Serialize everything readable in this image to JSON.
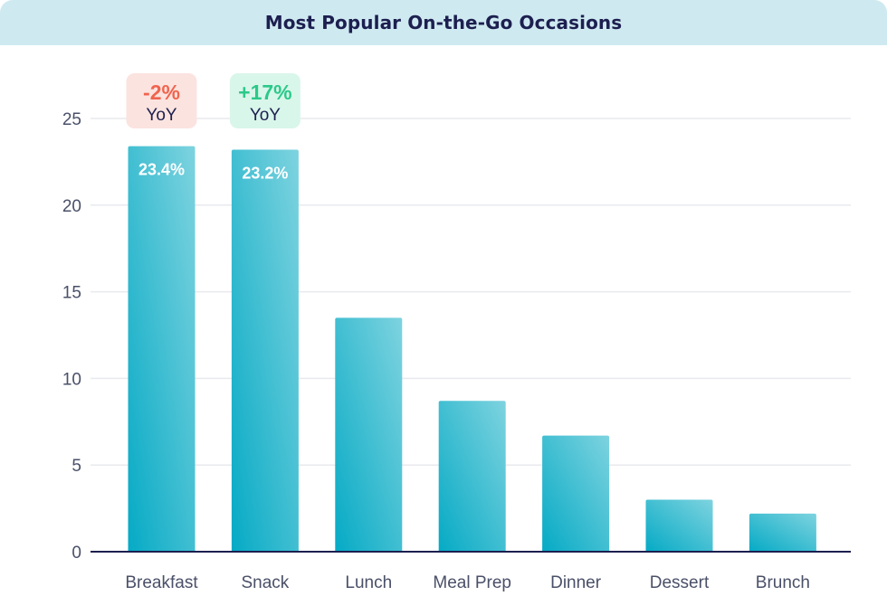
{
  "title": "Most Popular On-the-Go Occasions",
  "colors": {
    "title_bg": "#cfe9f1",
    "title_text": "#1c1f4f",
    "bar_top": "#7ed3df",
    "bar_bottom": "#05aac5",
    "bar_label": "#ffffff",
    "axis": "#1c1f4f",
    "grid": "#e8eaee",
    "tick_text": "#4a5068",
    "negative": "#f0644f",
    "negative_bg": "#fbe3df",
    "positive": "#2bc989",
    "positive_bg": "#d9f6ea",
    "badge_text": "#1c1f4f"
  },
  "chart_data": {
    "type": "bar",
    "title": "Most Popular On-the-Go Occasions",
    "xlabel": "",
    "ylabel": "",
    "categories": [
      "Breakfast",
      "Snack",
      "Lunch",
      "Meal Prep",
      "Dinner",
      "Dessert",
      "Brunch"
    ],
    "values": [
      23.4,
      23.2,
      13.5,
      8.7,
      6.7,
      3.0,
      2.2
    ],
    "data_labels": [
      "23.4%",
      "23.2%",
      "",
      "",
      "",
      "",
      ""
    ],
    "yticks": [
      0,
      5,
      10,
      15,
      20,
      25
    ],
    "ylim": [
      0,
      25
    ],
    "grid": true,
    "legend": "none",
    "annotations": [
      {
        "category": "Breakfast",
        "change": "-2%",
        "label": "YoY",
        "sentiment": "negative"
      },
      {
        "category": "Snack",
        "change": "+17%",
        "label": "YoY",
        "sentiment": "positive"
      }
    ]
  }
}
